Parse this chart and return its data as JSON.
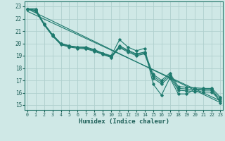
{
  "title": "",
  "xlabel": "Humidex (Indice chaleur)",
  "ylabel": "",
  "background_color": "#cfe8e6",
  "grid_color": "#afd0ce",
  "line_color": "#1e7a6e",
  "x_ticks": [
    0,
    1,
    2,
    3,
    4,
    5,
    6,
    7,
    8,
    9,
    10,
    11,
    12,
    13,
    14,
    15,
    16,
    17,
    18,
    19,
    20,
    21,
    22,
    23
  ],
  "y_ticks": [
    15,
    16,
    17,
    18,
    19,
    20,
    21,
    22,
    23
  ],
  "xlim": [
    -0.3,
    23.3
  ],
  "ylim": [
    14.6,
    23.4
  ],
  "series": [
    [
      22.8,
      22.8,
      21.6,
      20.7,
      20.0,
      19.8,
      19.7,
      19.7,
      19.5,
      19.2,
      19.0,
      20.3,
      19.7,
      19.4,
      19.6,
      16.7,
      15.8,
      17.2,
      15.9,
      15.9,
      16.3,
      16.3,
      16.3,
      15.2
    ],
    [
      22.8,
      22.7,
      21.6,
      20.7,
      20.0,
      19.8,
      19.7,
      19.65,
      19.45,
      19.2,
      18.95,
      19.8,
      19.45,
      19.15,
      19.3,
      17.5,
      17.0,
      17.6,
      16.5,
      16.45,
      16.4,
      16.35,
      16.35,
      15.65
    ],
    [
      22.8,
      22.65,
      21.55,
      20.65,
      19.95,
      19.75,
      19.65,
      19.6,
      19.4,
      19.15,
      18.9,
      19.72,
      19.38,
      19.08,
      19.22,
      17.35,
      16.85,
      17.45,
      16.35,
      16.3,
      16.25,
      16.2,
      16.2,
      15.5
    ],
    [
      22.8,
      22.6,
      21.5,
      20.6,
      19.9,
      19.7,
      19.6,
      19.55,
      19.35,
      19.1,
      18.85,
      19.65,
      19.3,
      19.0,
      19.15,
      17.2,
      16.7,
      17.3,
      16.2,
      16.15,
      16.1,
      16.05,
      16.05,
      15.35
    ]
  ],
  "trend_lines": [
    {
      "x0": 0,
      "y0": 22.8,
      "x1": 23,
      "y1": 15.2
    },
    {
      "x0": 0,
      "y0": 22.6,
      "x1": 23,
      "y1": 15.35
    }
  ]
}
